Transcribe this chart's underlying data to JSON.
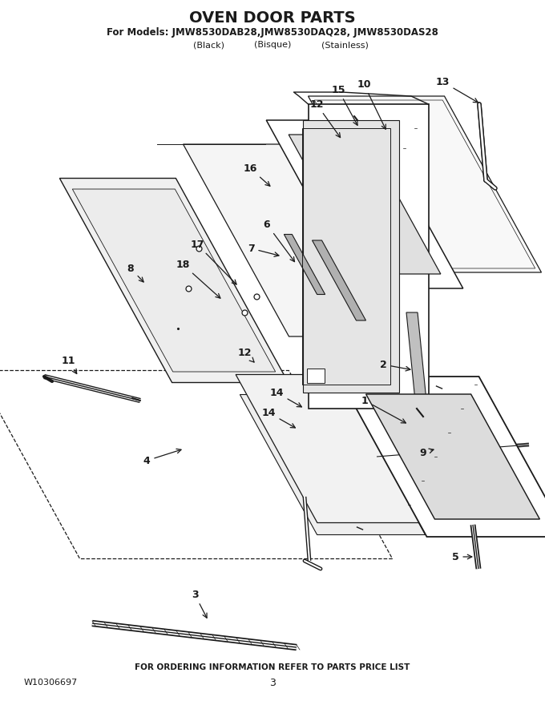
{
  "title": "OVEN DOOR PARTS",
  "subtitle1": "For Models: JMW8530DAB28,JMW8530DAQ28, JMW8530DAS28",
  "subtitle2_black": "(Black)",
  "subtitle2_bisque": "(Bisque)",
  "subtitle2_stainless": "(Stainless)",
  "footer1": "FOR ORDERING INFORMATION REFER TO PARTS PRICE LIST",
  "footer2": "W10306697",
  "footer3": "3",
  "bg_color": "#ffffff",
  "line_color": "#1a1a1a"
}
